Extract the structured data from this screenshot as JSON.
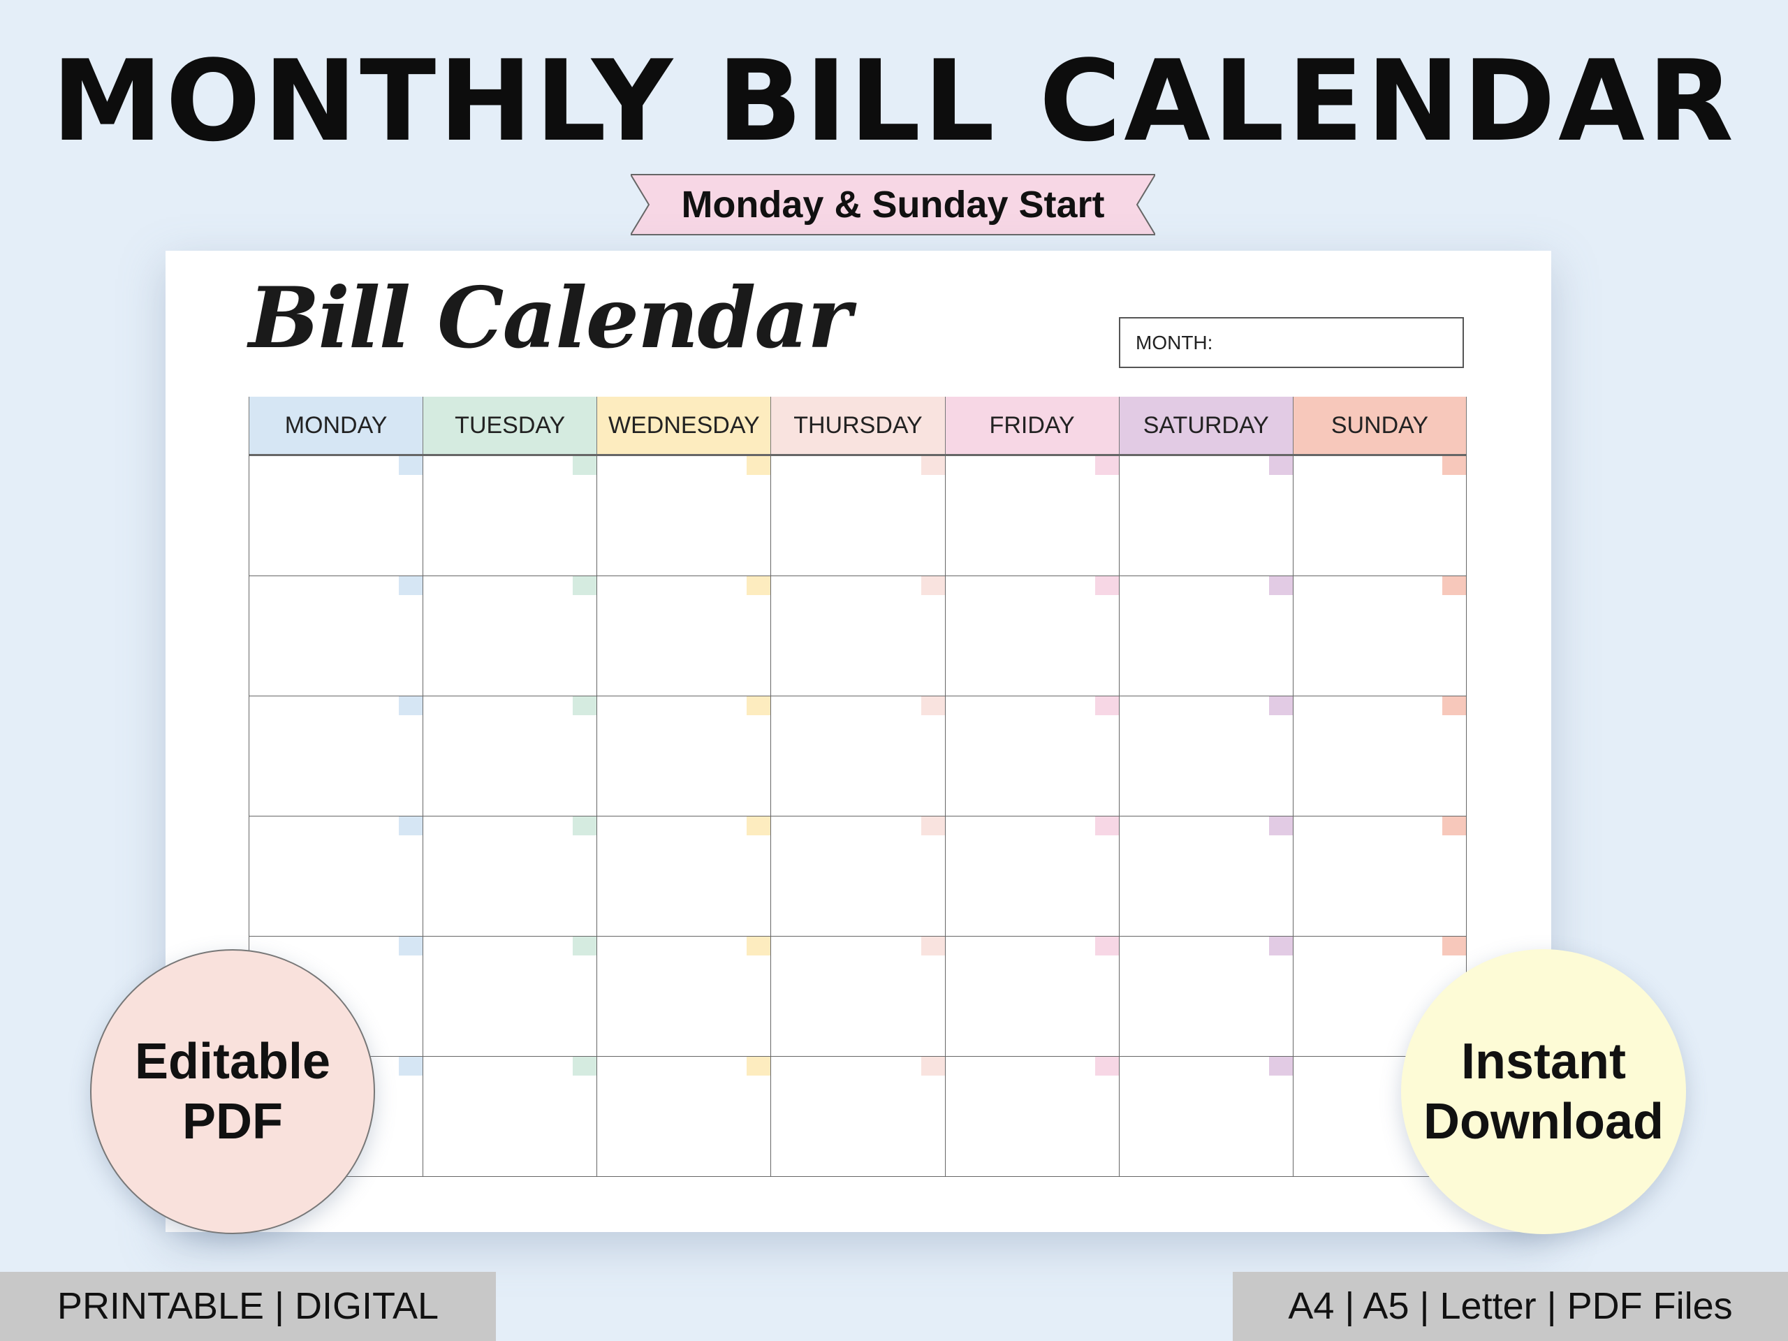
{
  "title": "MONTHLY BILL CALENDAR",
  "banner": "Monday & Sunday Start",
  "calendar": {
    "script_title": "Bill Calendar",
    "month_label": "MONTH:",
    "days": [
      {
        "label": "MONDAY",
        "color": "#d6e6f4"
      },
      {
        "label": "TUESDAY",
        "color": "#d5ebe0"
      },
      {
        "label": "WEDNESDAY",
        "color": "#fdecbf"
      },
      {
        "label": "THURSDAY",
        "color": "#f9e3df"
      },
      {
        "label": "FRIDAY",
        "color": "#f7d7e5"
      },
      {
        "label": "SATURDAY",
        "color": "#e2cbe4"
      },
      {
        "label": "SUNDAY",
        "color": "#f7c8bb"
      }
    ],
    "weeks": 6
  },
  "badges": {
    "editable": "Editable PDF",
    "instant": "Instant Download"
  },
  "footer": {
    "left": "PRINTABLE | DIGITAL",
    "right": "A4 | A5 | Letter | PDF Files"
  },
  "colors": {
    "background": "#e4eef8",
    "banner": "#f7d7e5",
    "editable_circle": "#f9e1dc",
    "instant_circle": "#fdfbd6"
  }
}
